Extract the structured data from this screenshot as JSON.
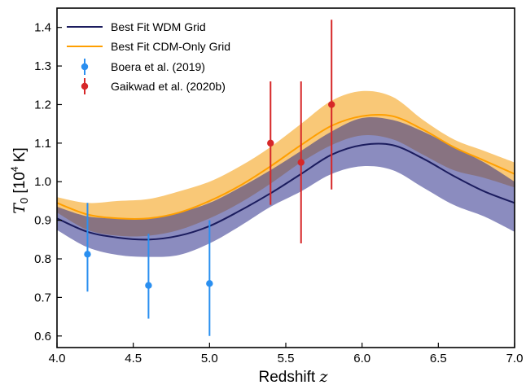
{
  "chart_data": {
    "type": "line",
    "xlabel": {
      "text": "Redshift",
      "var": "z"
    },
    "ylabel": {
      "var": "T",
      "sub": "0",
      "unit_pre": "[10",
      "unit_sup": "4",
      "unit_post": " K]"
    },
    "xlim": [
      4.0,
      7.0
    ],
    "ylim": [
      0.57,
      1.45
    ],
    "xticks": [
      4.0,
      4.5,
      5.0,
      5.5,
      6.0,
      6.5,
      7.0
    ],
    "xtick_labels": [
      "4.0",
      "4.5",
      "5.0",
      "5.5",
      "6.0",
      "6.5",
      "7.0"
    ],
    "yticks": [
      0.6,
      0.7,
      0.8,
      0.9,
      1.0,
      1.1,
      1.2,
      1.3,
      1.4
    ],
    "ytick_labels": [
      "0.6",
      "0.7",
      "0.8",
      "0.9",
      "1.0",
      "1.1",
      "1.2",
      "1.3",
      "1.4"
    ],
    "grid": false,
    "legend_position": "top-left",
    "x": [
      4.0,
      4.2,
      4.4,
      4.6,
      4.8,
      5.0,
      5.2,
      5.4,
      5.6,
      5.8,
      6.0,
      6.2,
      6.4,
      6.6,
      6.8,
      7.0
    ],
    "bands": [
      {
        "name": "",
        "color": "#f5a623",
        "opacity": 0.62,
        "upper": [
          0.96,
          0.945,
          0.95,
          0.955,
          0.975,
          1.0,
          1.04,
          1.09,
          1.15,
          1.21,
          1.235,
          1.22,
          1.16,
          1.11,
          1.08,
          1.05
        ],
        "lower": [
          0.92,
          0.875,
          0.86,
          0.86,
          0.875,
          0.905,
          0.945,
          0.995,
          1.05,
          1.095,
          1.12,
          1.11,
          1.07,
          1.03,
          1.01,
          0.985
        ]
      },
      {
        "name": "",
        "color": "#2b2d8a",
        "opacity": 0.55,
        "upper": [
          0.935,
          0.91,
          0.905,
          0.905,
          0.92,
          0.945,
          0.985,
          1.03,
          1.08,
          1.13,
          1.165,
          1.16,
          1.13,
          1.09,
          1.05,
          1.0
        ],
        "lower": [
          0.875,
          0.83,
          0.81,
          0.805,
          0.81,
          0.84,
          0.885,
          0.935,
          0.975,
          1.02,
          1.04,
          1.03,
          0.985,
          0.94,
          0.91,
          0.87
        ]
      }
    ],
    "series": [
      {
        "name": "Best Fit WDM Grid",
        "color": "#1b1c5e",
        "values": [
          0.905,
          0.87,
          0.855,
          0.85,
          0.86,
          0.885,
          0.925,
          0.97,
          1.02,
          1.07,
          1.095,
          1.095,
          1.06,
          1.015,
          0.975,
          0.945
        ]
      },
      {
        "name": "Best Fit CDM-Only Grid",
        "color": "#ff9f00",
        "values": [
          0.945,
          0.915,
          0.905,
          0.905,
          0.92,
          0.95,
          0.99,
          1.04,
          1.095,
          1.145,
          1.17,
          1.17,
          1.135,
          1.09,
          1.055,
          1.02
        ]
      }
    ],
    "points": [
      {
        "name": "Boera et al. (2019)",
        "color": "#2a8ff0",
        "data": [
          {
            "x": 4.2,
            "y": 0.812,
            "err_lo": 0.097,
            "err_hi": 0.133
          },
          {
            "x": 4.6,
            "y": 0.731,
            "err_lo": 0.086,
            "err_hi": 0.134
          },
          {
            "x": 5.0,
            "y": 0.736,
            "err_lo": 0.136,
            "err_hi": 0.164
          }
        ]
      },
      {
        "name": "Gaikwad et al. (2020b)",
        "color": "#d62728",
        "data": [
          {
            "x": 5.4,
            "y": 1.1,
            "err_lo": 0.16,
            "err_hi": 0.16
          },
          {
            "x": 5.6,
            "y": 1.05,
            "err_lo": 0.21,
            "err_hi": 0.21
          },
          {
            "x": 5.8,
            "y": 1.2,
            "err_lo": 0.22,
            "err_hi": 0.22
          }
        ]
      }
    ]
  }
}
